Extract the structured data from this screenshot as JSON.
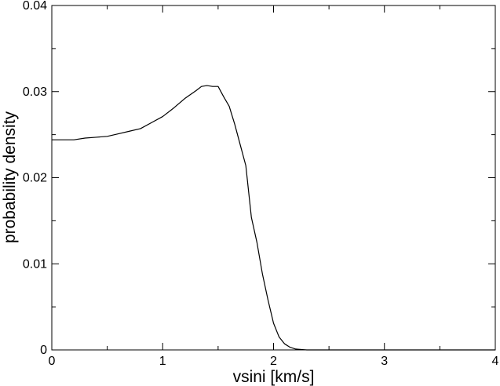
{
  "chart_data": {
    "type": "line",
    "xlabel": "vsini [km/s]",
    "ylabel": "probability density",
    "xlim": [
      0,
      4
    ],
    "ylim": [
      0,
      0.04
    ],
    "xticks": [
      0,
      1,
      2,
      3,
      4
    ],
    "xtick_labels": [
      "0",
      "1",
      "2",
      "3",
      "4"
    ],
    "yticks": [
      0,
      0.01,
      0.02,
      0.03,
      0.04
    ],
    "ytick_labels": [
      "0",
      "0.01",
      "0.02",
      "0.03",
      "0.04"
    ],
    "grid": false,
    "series": [
      {
        "color": "#000000",
        "x": [
          0,
          0.1,
          0.2,
          0.3,
          0.4,
          0.5,
          0.6,
          0.7,
          0.8,
          0.9,
          1.0,
          1.1,
          1.2,
          1.3,
          1.35,
          1.4,
          1.45,
          1.5,
          1.55,
          1.6,
          1.65,
          1.7,
          1.75,
          1.8,
          1.85,
          1.9,
          1.95,
          2.0,
          2.05,
          2.1,
          2.15,
          2.2,
          2.25,
          2.3,
          2.4,
          2.6,
          3.0,
          3.5,
          4.0
        ],
        "y": [
          0.0244,
          0.0244,
          0.0244,
          0.0246,
          0.0247,
          0.0248,
          0.0251,
          0.0254,
          0.0257,
          0.0264,
          0.0271,
          0.0281,
          0.0292,
          0.0301,
          0.0306,
          0.0307,
          0.0306,
          0.0306,
          0.0294,
          0.0283,
          0.0262,
          0.0238,
          0.0214,
          0.0154,
          0.0125,
          0.0088,
          0.0058,
          0.0031,
          0.0015,
          0.0007,
          0.0003,
          0.0001,
          5e-05,
          0.0,
          0.0,
          0.0,
          0.0,
          0.0,
          0.0
        ]
      }
    ]
  }
}
